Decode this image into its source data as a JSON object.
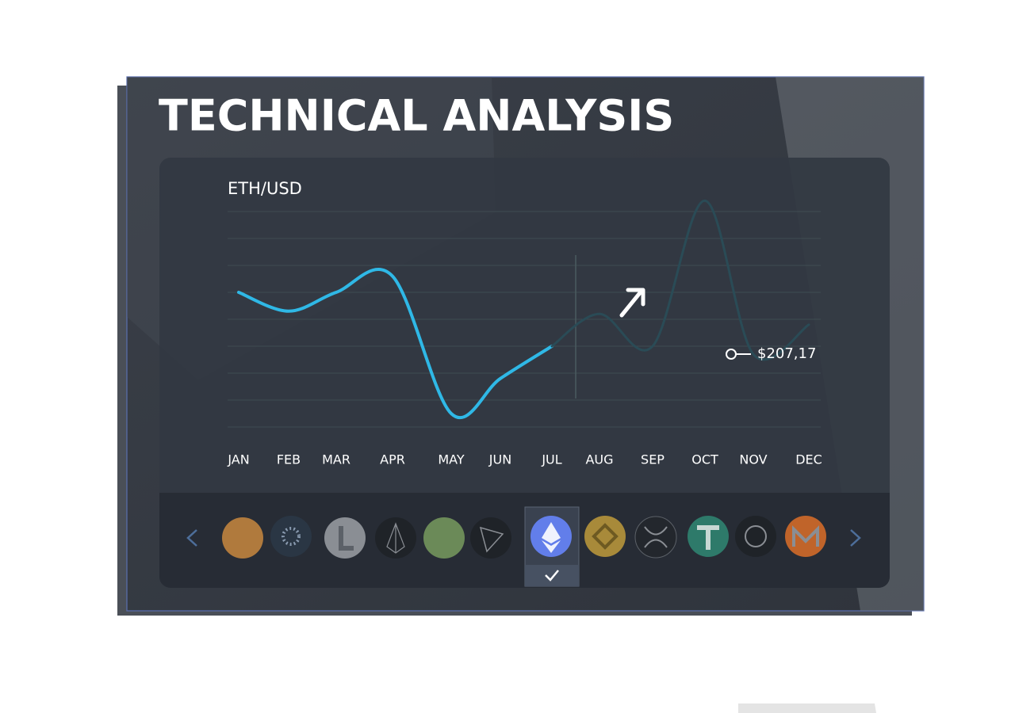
{
  "header": {
    "title": "TECHNICAL ANALYSIS"
  },
  "chart_data": {
    "type": "line",
    "title": "ETH/USD",
    "categories": [
      "JAN",
      "FEB",
      "MAR",
      "APR",
      "MAY",
      "JUN",
      "JUL",
      "AUG",
      "SEP",
      "OCT",
      "NOV",
      "DEC"
    ],
    "series": [
      {
        "color": "#2fb8e6",
        "values": [
          5.0,
          4.3,
          5.0,
          5.6,
          0.5,
          1.8,
          3.0,
          null,
          null,
          null,
          null,
          null
        ]
      },
      {
        "color": "#2a4b56",
        "values": [
          null,
          null,
          null,
          null,
          null,
          null,
          3.0,
          4.2,
          3.0,
          8.4,
          2.7,
          3.8
        ]
      }
    ],
    "ylim": [
      0,
      8
    ],
    "grid": true,
    "annotation": "$207,17"
  }
}
